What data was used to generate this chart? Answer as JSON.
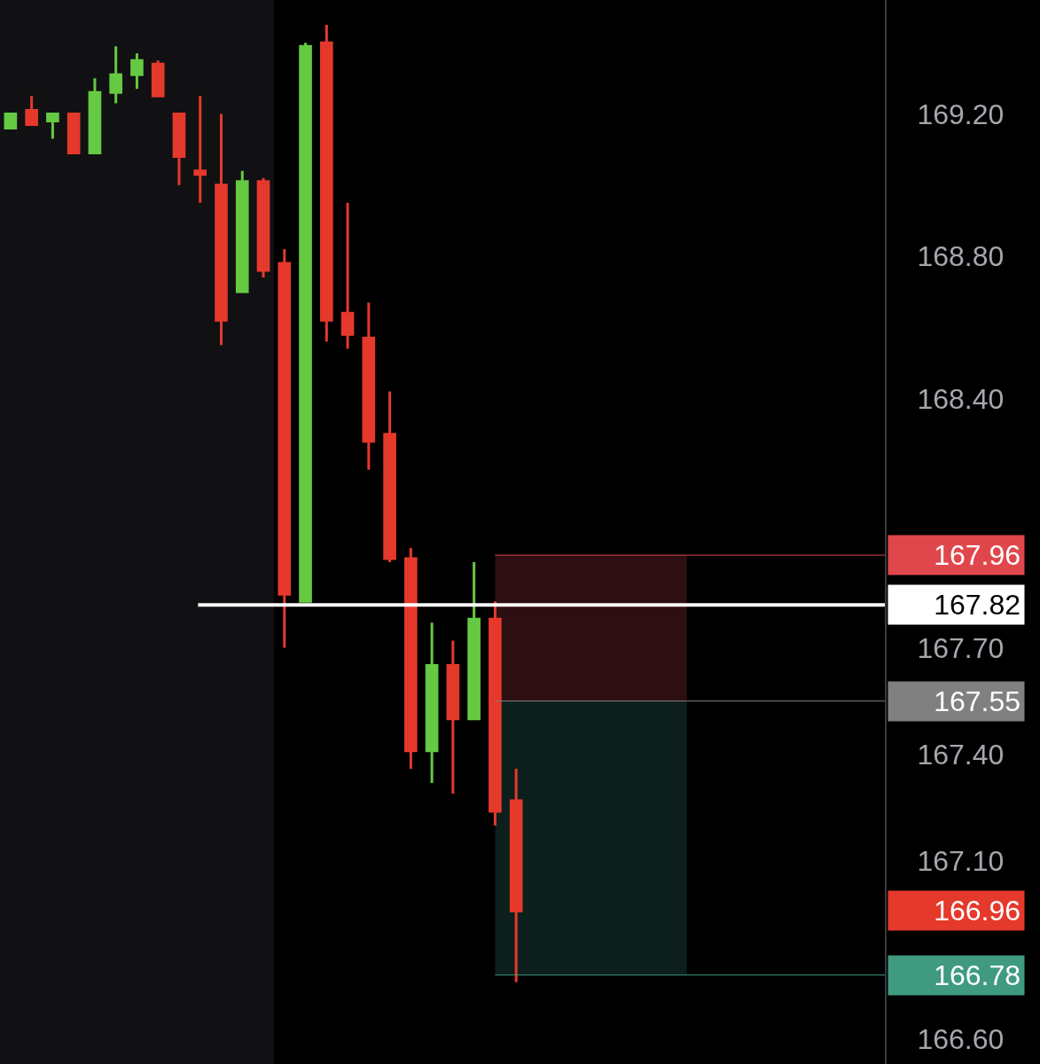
{
  "chart_data": {
    "type": "candlestick",
    "categories": [
      null,
      null,
      null,
      null,
      null,
      null,
      null,
      null,
      null,
      null,
      null,
      null,
      null,
      null,
      null,
      null,
      null,
      null,
      null,
      null,
      null,
      null,
      null,
      null,
      null,
      null,
      null,
      null,
      null,
      null,
      null,
      null,
      null,
      null,
      null,
      null,
      null,
      null,
      null,
      null,
      null,
      null
    ],
    "ohlc": [
      [
        169.16,
        169.2,
        169.16,
        169.2
      ],
      [
        169.21,
        169.25,
        169.17,
        169.17
      ],
      [
        169.18,
        169.2,
        169.13,
        169.2
      ],
      [
        169.2,
        169.2,
        169.09,
        169.09
      ],
      [
        169.09,
        169.3,
        169.09,
        169.26
      ],
      [
        169.26,
        169.39,
        169.23,
        169.31
      ],
      [
        169.31,
        169.37,
        169.27,
        169.35
      ],
      [
        169.34,
        169.35,
        169.25,
        169.25
      ],
      [
        169.2,
        169.2,
        169.0,
        169.08
      ],
      [
        169.04,
        169.25,
        168.95,
        169.03
      ],
      [
        169.0,
        169.2,
        168.55,
        168.62
      ],
      [
        168.7,
        169.04,
        168.7,
        169.01
      ],
      [
        169.01,
        169.02,
        168.74,
        168.76
      ],
      [
        168.78,
        168.82,
        167.7,
        167.85
      ],
      [
        167.83,
        169.4,
        167.83,
        169.39
      ],
      [
        169.4,
        169.45,
        168.56,
        168.62
      ],
      [
        168.64,
        168.95,
        168.54,
        168.58
      ],
      [
        168.57,
        168.67,
        168.2,
        168.28
      ],
      [
        168.3,
        168.42,
        167.94,
        167.95
      ],
      [
        167.95,
        167.98,
        167.36,
        167.41
      ],
      [
        167.41,
        167.77,
        167.32,
        167.65
      ],
      [
        167.65,
        167.72,
        167.29,
        167.5
      ],
      [
        167.5,
        167.94,
        167.5,
        167.78
      ],
      [
        167.78,
        167.83,
        167.2,
        167.24
      ],
      [
        167.27,
        167.36,
        166.76,
        166.96
      ],
      null,
      null,
      null,
      null,
      null,
      null,
      null,
      null,
      null,
      null,
      null,
      null,
      null,
      null,
      null,
      null,
      null
    ],
    "colors": [
      "#66c943",
      "#e5392c",
      "#66c943",
      "#e5392c",
      "#66c943",
      "#66c943",
      "#66c943",
      "#e5392c",
      "#e5392c",
      "#e5392c",
      "#e5392c",
      "#66c943",
      "#e5392c",
      "#e5392c",
      "#66c943",
      "#e5392c",
      "#e5392c",
      "#e5392c",
      "#e5392c",
      "#e5392c",
      "#66c943",
      "#e5392c",
      "#66c943",
      "#e5392c",
      "#e5392c",
      null,
      null,
      null,
      null,
      null,
      null,
      null,
      null,
      null,
      null,
      null,
      null,
      null,
      null,
      null,
      null,
      null
    ],
    "ylim": [
      166.53,
      169.52
    ],
    "yticks": [
      {
        "value": 169.2,
        "label": "169.20"
      },
      {
        "value": 168.8,
        "label": "168.80"
      },
      {
        "value": 168.4,
        "label": "168.40"
      },
      {
        "value": 167.7,
        "label": "167.70"
      },
      {
        "value": 167.4,
        "label": "167.40"
      },
      {
        "value": 167.1,
        "label": "167.10"
      },
      {
        "value": 166.6,
        "label": "166.60"
      }
    ],
    "grid": false,
    "ref_lines": [
      {
        "axis": "y",
        "value": 167.82,
        "label": "167.82",
        "color": "#ffffff",
        "line_style": "solid"
      },
      {
        "axis": "y",
        "value": 167.96,
        "label": "167.96",
        "color": "#e0474c",
        "line_style": "solid"
      },
      {
        "axis": "y",
        "value": 167.55,
        "label": "167.55",
        "color": "#808080",
        "line_style": "solid"
      },
      {
        "axis": "y",
        "value": 166.78,
        "label": "166.78",
        "color": "#3f9a80",
        "line_style": "solid"
      }
    ],
    "bands": [
      {
        "axis": "y",
        "from": 167.55,
        "to": 167.96,
        "color": "#2e0f11"
      },
      {
        "axis": "y",
        "from": 166.78,
        "to": 167.55,
        "color": "#0c1f1c"
      }
    ],
    "annotations": [
      "166.96"
    ]
  }
}
